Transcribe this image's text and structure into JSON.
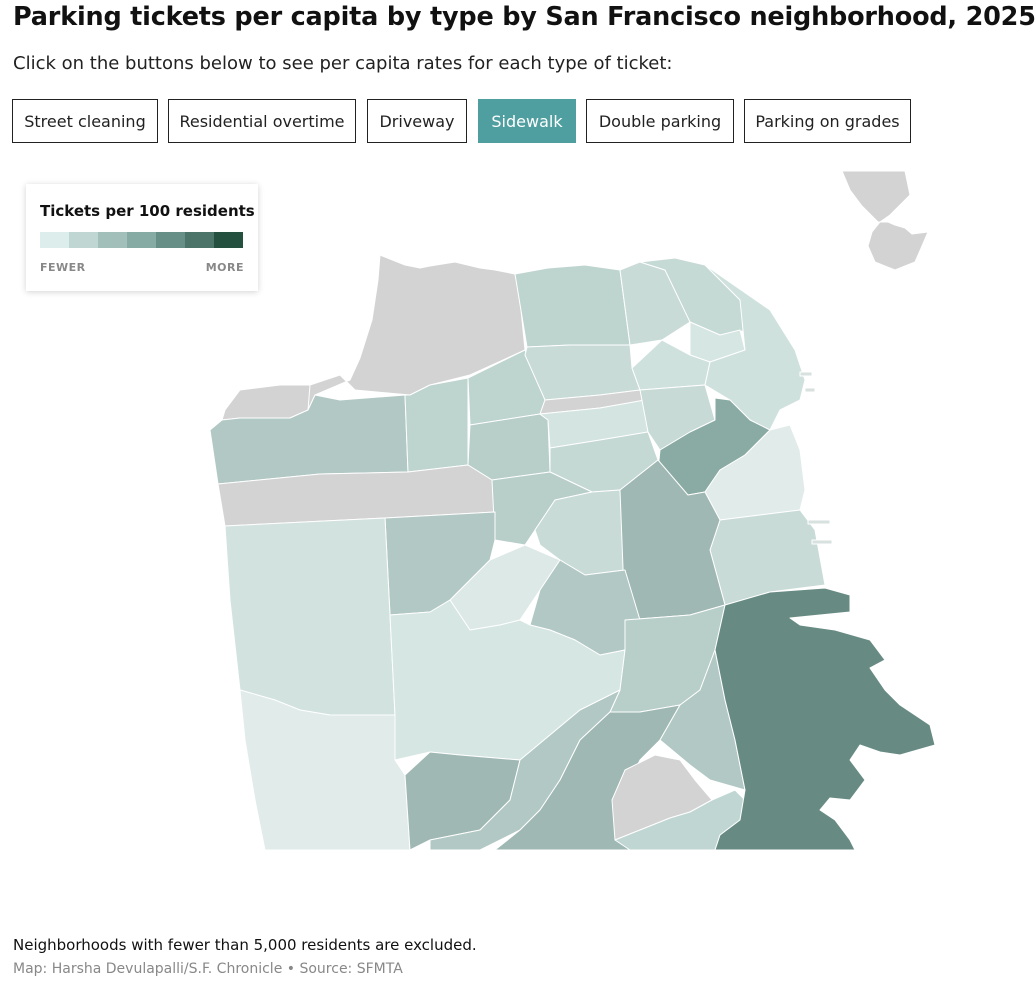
{
  "header": {
    "title": "Parking tickets per capita by type by San Francisco neighborhood, 2025",
    "subtitle": "Click on the buttons below to see per capita rates for each type of ticket:"
  },
  "buttons": [
    {
      "label": "Street cleaning",
      "active": false
    },
    {
      "label": "Residential overtime",
      "active": false
    },
    {
      "label": "Driveway",
      "active": false
    },
    {
      "label": "Sidewalk",
      "active": true
    },
    {
      "label": "Double parking",
      "active": false
    },
    {
      "label": "Parking on grades",
      "active": false
    }
  ],
  "legend": {
    "title": "Tickets per 100 residents",
    "low_label": "FEWER",
    "high_label": "MORE",
    "colors": [
      "#dcedec",
      "#c0d6d2",
      "#a3bfba",
      "#86aba4",
      "#688f87",
      "#4c7469",
      "#24503f"
    ]
  },
  "colors": {
    "active_button": "#4f9ea0",
    "no_data": "#d3d3d3",
    "border": "#ffffff"
  },
  "footer": {
    "note": "Neighborhoods with fewer than 5,000 residents are excluded.",
    "credit": "Map: Harsha Devulapalli/S.F. Chronicle • Source: SFMTA"
  }
}
